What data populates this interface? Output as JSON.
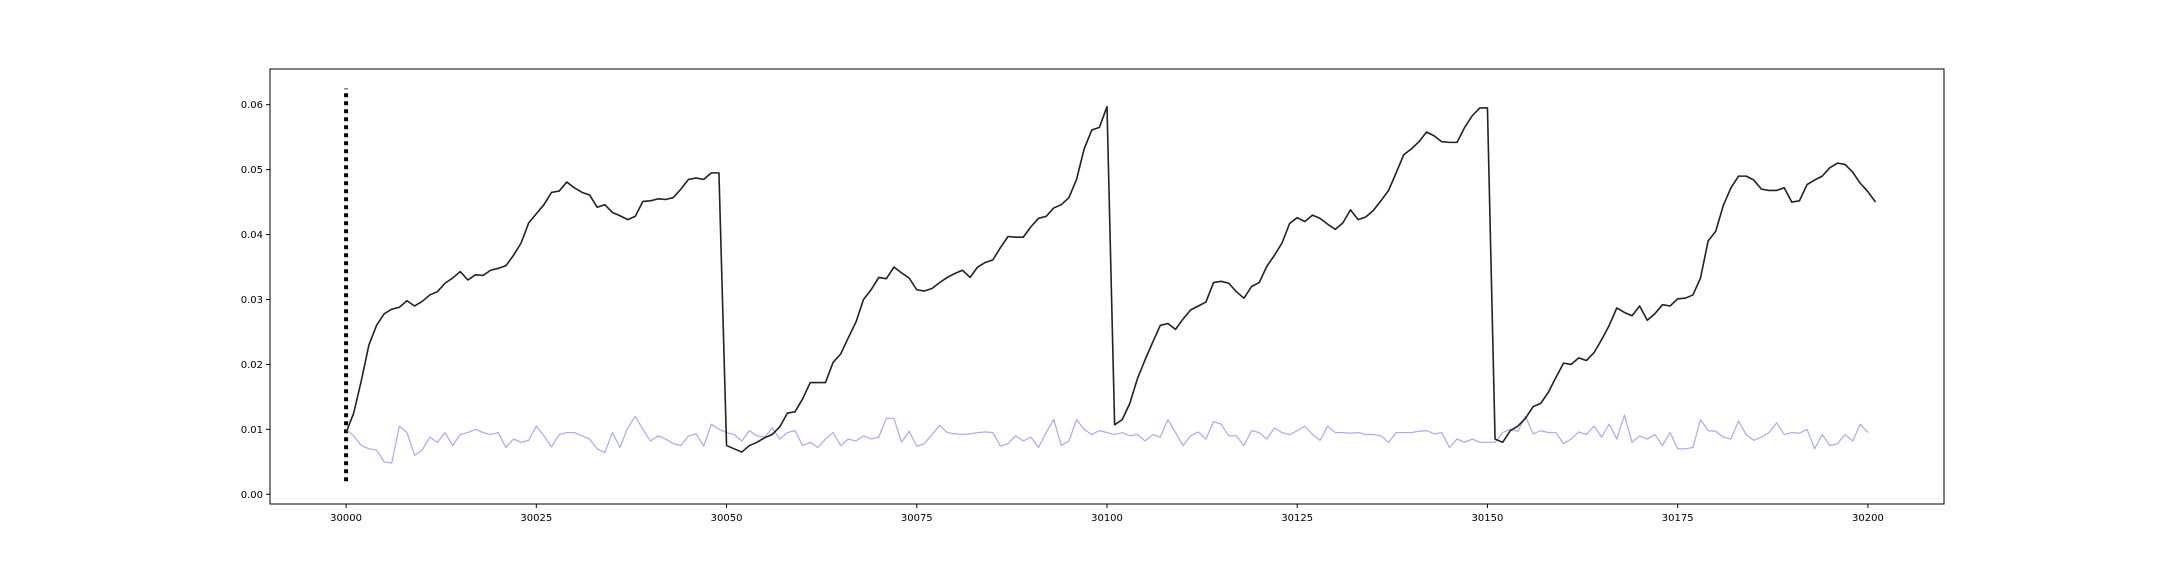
{
  "chart_data": {
    "type": "line",
    "title": "",
    "xlabel": "",
    "ylabel": "",
    "xlim": [
      29990,
      30210
    ],
    "ylim": [
      -0.0015,
      0.0655
    ],
    "xticks": [
      30000,
      30025,
      30050,
      30075,
      30100,
      30125,
      30150,
      30175,
      30200
    ],
    "xtick_labels": [
      "30000",
      "30025",
      "30050",
      "30075",
      "30100",
      "30125",
      "30150",
      "30175",
      "30200"
    ],
    "yticks": [
      0.0,
      0.01,
      0.02,
      0.03,
      0.04,
      0.05,
      0.06
    ],
    "ytick_labels": [
      "0.00",
      "0.01",
      "0.02",
      "0.03",
      "0.04",
      "0.05",
      "0.06"
    ],
    "grid": false,
    "legend": "none",
    "vline": {
      "x": 30000,
      "y_range": [
        0.002,
        0.0625
      ],
      "style": "dotted",
      "color": "#000000"
    },
    "series": [
      {
        "color": "#222222",
        "style": "solid",
        "x_start": 30000,
        "values": [
          0.0095,
          0.0125,
          0.0175,
          0.023,
          0.026,
          0.0278,
          0.0285,
          0.0288,
          0.0298,
          0.029,
          0.0297,
          0.0307,
          0.0312,
          0.0325,
          0.0333,
          0.0343,
          0.033,
          0.0338,
          0.0337,
          0.0345,
          0.0348,
          0.0352,
          0.0368,
          0.0387,
          0.0418,
          0.0432,
          0.0446,
          0.0465,
          0.0467,
          0.0481,
          0.0472,
          0.0465,
          0.0461,
          0.0442,
          0.0446,
          0.0434,
          0.0429,
          0.0423,
          0.0428,
          0.0451,
          0.0452,
          0.0455,
          0.0454,
          0.0457,
          0.047,
          0.0485,
          0.0487,
          0.0485,
          0.0495,
          0.0495,
          0.0075,
          0.007,
          0.0065,
          0.0075,
          0.008,
          0.0087,
          0.0092,
          0.0104,
          0.0125,
          0.0127,
          0.0147,
          0.0172,
          0.0172,
          0.0172,
          0.0203,
          0.0216,
          0.0241,
          0.0265,
          0.03,
          0.0315,
          0.0334,
          0.0332,
          0.035,
          0.0341,
          0.0333,
          0.0315,
          0.0313,
          0.0317,
          0.0326,
          0.0334,
          0.034,
          0.0345,
          0.0334,
          0.035,
          0.0357,
          0.0361,
          0.038,
          0.0397,
          0.0396,
          0.0396,
          0.0412,
          0.0425,
          0.0428,
          0.0441,
          0.0446,
          0.0457,
          0.0485,
          0.0532,
          0.0561,
          0.0565,
          0.0597,
          0.0107,
          0.0115,
          0.014,
          0.0178,
          0.0207,
          0.0234,
          0.026,
          0.0263,
          0.0254,
          0.027,
          0.0284,
          0.029,
          0.0296,
          0.0326,
          0.0328,
          0.0325,
          0.0312,
          0.0302,
          0.032,
          0.0326,
          0.0351,
          0.0368,
          0.0387,
          0.0417,
          0.0426,
          0.042,
          0.043,
          0.0425,
          0.0416,
          0.0408,
          0.0418,
          0.0438,
          0.0423,
          0.0427,
          0.0437,
          0.0452,
          0.0468,
          0.0495,
          0.0523,
          0.0532,
          0.0543,
          0.0558,
          0.0552,
          0.0543,
          0.0542,
          0.0542,
          0.0565,
          0.0583,
          0.0595,
          0.0595,
          0.0085,
          0.008,
          0.0098,
          0.0105,
          0.0117,
          0.0135,
          0.014,
          0.0157,
          0.018,
          0.0202,
          0.02,
          0.021,
          0.0206,
          0.0218,
          0.0238,
          0.026,
          0.0287,
          0.028,
          0.0275,
          0.029,
          0.0268,
          0.0278,
          0.0292,
          0.029,
          0.0301,
          0.0302,
          0.0307,
          0.0333,
          0.039,
          0.0405,
          0.0445,
          0.0472,
          0.049,
          0.049,
          0.0484,
          0.047,
          0.0468,
          0.0468,
          0.0472,
          0.045,
          0.0452,
          0.0477,
          0.0484,
          0.049,
          0.0503,
          0.051,
          0.0508,
          0.0496,
          0.0479,
          0.0466,
          0.045
        ]
      },
      {
        "color": "#a8a8ff",
        "style": "solid",
        "x_start": 30000,
        "values": [
          0.01,
          0.009,
          0.0075,
          0.007,
          0.0068,
          0.005,
          0.0048,
          0.0105,
          0.0095,
          0.006,
          0.0068,
          0.0088,
          0.008,
          0.0095,
          0.0075,
          0.0092,
          0.0095,
          0.01,
          0.0095,
          0.0092,
          0.0095,
          0.0072,
          0.0085,
          0.008,
          0.0083,
          0.0105,
          0.009,
          0.0073,
          0.0092,
          0.0095,
          0.0095,
          0.009,
          0.0085,
          0.007,
          0.0064,
          0.0095,
          0.0072,
          0.0102,
          0.012,
          0.01,
          0.0082,
          0.009,
          0.0085,
          0.0078,
          0.0075,
          0.009,
          0.0093,
          0.0074,
          0.0108,
          0.01,
          0.0095,
          0.0092,
          0.0082,
          0.0098,
          0.009,
          0.0088,
          0.0102,
          0.0085,
          0.0095,
          0.0098,
          0.0075,
          0.008,
          0.0072,
          0.0085,
          0.0095,
          0.0075,
          0.0085,
          0.0082,
          0.009,
          0.0085,
          0.0088,
          0.0117,
          0.0117,
          0.008,
          0.0097,
          0.0074,
          0.0078,
          0.0092,
          0.0106,
          0.0095,
          0.0093,
          0.0092,
          0.0093,
          0.0095,
          0.0096,
          0.0095,
          0.0074,
          0.0078,
          0.009,
          0.0082,
          0.0088,
          0.0072,
          0.0095,
          0.0115,
          0.0075,
          0.0082,
          0.0115,
          0.01,
          0.0092,
          0.0098,
          0.0095,
          0.0092,
          0.0095,
          0.009,
          0.0092,
          0.0082,
          0.0092,
          0.0088,
          0.0115,
          0.0095,
          0.0075,
          0.009,
          0.0096,
          0.0085,
          0.0112,
          0.0108,
          0.009,
          0.009,
          0.0075,
          0.0098,
          0.0095,
          0.0085,
          0.0102,
          0.0095,
          0.0092,
          0.0098,
          0.0105,
          0.0092,
          0.0083,
          0.0105,
          0.0095,
          0.0095,
          0.0094,
          0.0095,
          0.0092,
          0.0092,
          0.009,
          0.008,
          0.0095,
          0.0095,
          0.0095,
          0.0097,
          0.0098,
          0.0093,
          0.0095,
          0.0072,
          0.0085,
          0.008,
          0.0085,
          0.008,
          0.008,
          0.008,
          0.0095,
          0.01,
          0.0097,
          0.012,
          0.0093,
          0.0098,
          0.0095,
          0.0095,
          0.0078,
          0.0085,
          0.0096,
          0.0092,
          0.0105,
          0.0088,
          0.0108,
          0.0085,
          0.0122,
          0.008,
          0.009,
          0.0085,
          0.0092,
          0.0075,
          0.0095,
          0.007,
          0.007,
          0.0072,
          0.0115,
          0.0098,
          0.0097,
          0.0088,
          0.0085,
          0.0113,
          0.0092,
          0.0083,
          0.0088,
          0.0095,
          0.011,
          0.0092,
          0.0095,
          0.0094,
          0.01,
          0.007,
          0.0092,
          0.0075,
          0.0078,
          0.0092,
          0.0082,
          0.0108,
          0.0095
        ]
      }
    ]
  }
}
